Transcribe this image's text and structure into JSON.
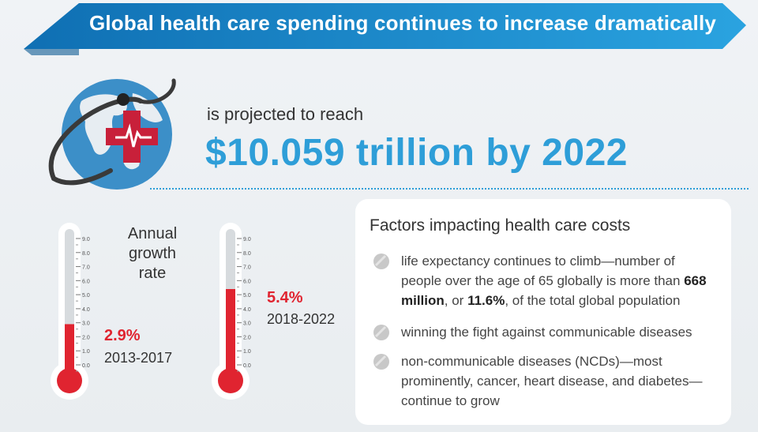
{
  "banner": {
    "title": "Global health care spending continues to increase dramatically",
    "color": "#1a8fd0"
  },
  "headline": {
    "label": "is projected to reach",
    "value": "$10.059 trillion by 2022",
    "color": "#2e9ed8"
  },
  "growth": {
    "heading": "Annual growth rate",
    "scale_ticks": [
      "9.0",
      "8.0",
      "7.0",
      "6.0",
      "5.0",
      "4.0",
      "3.0",
      "2.0",
      "1.0",
      "0.0"
    ],
    "scale_max": 9.0,
    "fill_color": "#e02430",
    "thermometers": [
      {
        "value_label": "2.9%",
        "value": 2.9,
        "period": "2013-2017"
      },
      {
        "value_label": "5.4%",
        "value": 5.4,
        "period": "2018-2022"
      }
    ]
  },
  "factors": {
    "title": "Factors impacting health care costs",
    "items": [
      {
        "text_before": "life expectancy continues to climb—number of people over the age of 65 globally is more than ",
        "bold_1": "668 million",
        "text_middle": ", or ",
        "bold_2": "11.6%",
        "text_after": ", of the total global population"
      },
      {
        "text": "winning the fight against communicable diseases"
      },
      {
        "text": "non-communicable diseases (NCDs)—most prominently, cancer, heart disease, and diabetes—continue to grow"
      }
    ]
  },
  "icons": [
    "globe-medical-icon",
    "stethoscope-icon",
    "heartbeat-icon",
    "thermometer-icon",
    "bullet-icon"
  ]
}
